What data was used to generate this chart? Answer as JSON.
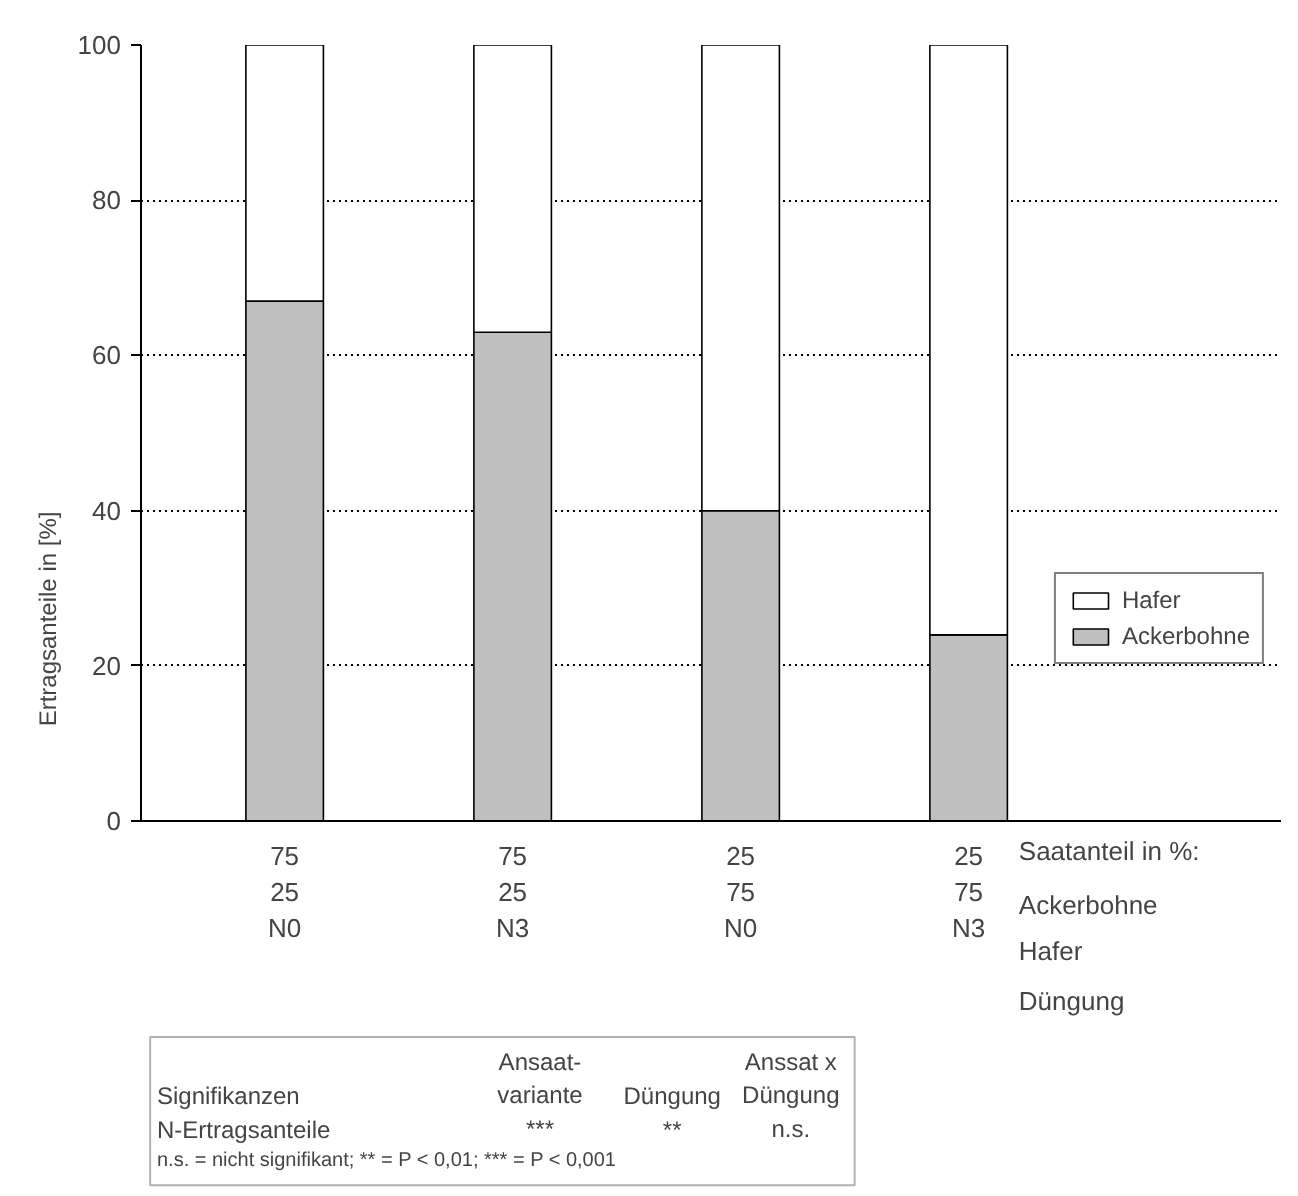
{
  "chart_data": {
    "type": "bar",
    "stacked": true,
    "ylabel": "Ertragsanteile in [%]",
    "categories": [
      "75\n25\nN0",
      "75\n25\nN3",
      "25\n75\nN0",
      "25\n75\nN3"
    ],
    "series": [
      {
        "name": "Ackerbohne",
        "color": "#c0c0c0",
        "values": [
          67,
          63,
          40,
          24
        ]
      },
      {
        "name": "Hafer",
        "color": "#ffffff",
        "values": [
          33,
          37,
          60,
          76
        ]
      }
    ],
    "ylim": [
      0,
      100
    ],
    "yticks": [
      0,
      20,
      40,
      60,
      80,
      100
    ],
    "grid": "y",
    "legend": "right",
    "annotations": [
      "Saatanteil in %:",
      "Ackerbohne",
      "Hafer",
      "Düngung",
      "Signifikanzen\nN-Ertragsanteile",
      "Ansaat-\nvariante\n***",
      "Düngung\n**",
      "Anssat x\nDüngung\nn.s.",
      "n.s. = nicht signifikant; ** = P < 0,01; *** = P < 0,001"
    ]
  }
}
